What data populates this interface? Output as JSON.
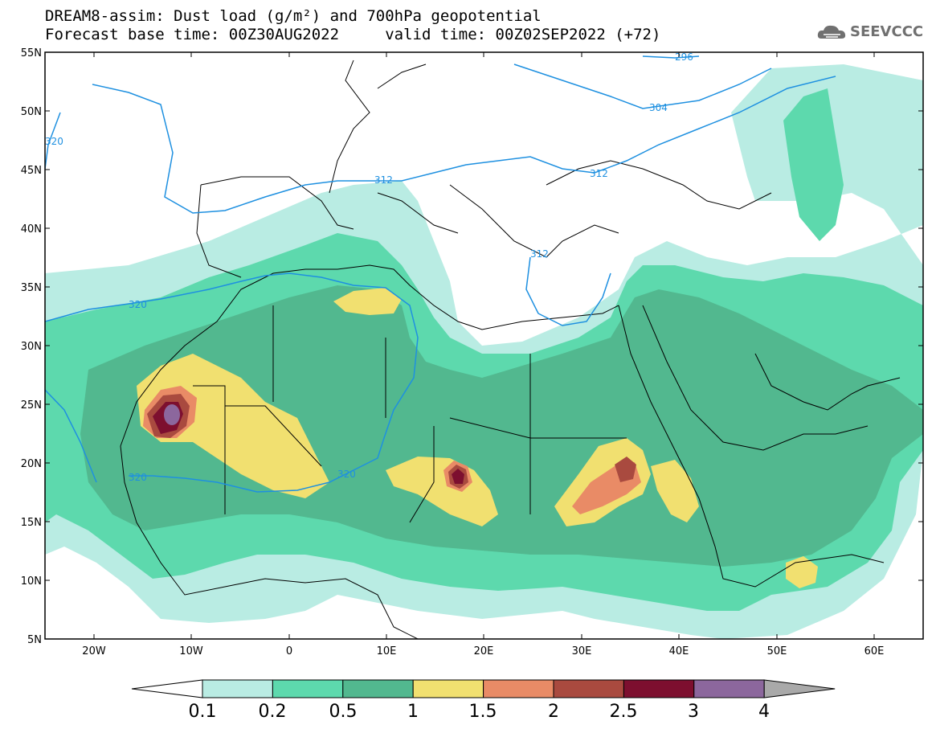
{
  "title": {
    "line1": "DREAM8-assim: Dust load (g/m²) and 700hPa geopotential",
    "line2": "Forecast base time: 00Z30AUG2022     valid time: 00Z02SEP2022 (+72)"
  },
  "logo": {
    "text": "SEEVCCC",
    "icon": "cloud-icon"
  },
  "map": {
    "projection": "equirectangular",
    "lon_range": [
      -25,
      65
    ],
    "lat_range": [
      5,
      55
    ],
    "lat_ticks": [
      "55N",
      "50N",
      "45N",
      "40N",
      "35N",
      "30N",
      "25N",
      "20N",
      "15N",
      "10N",
      "5N"
    ],
    "lon_ticks": [
      "20W",
      "10W",
      "0",
      "10E",
      "20E",
      "30E",
      "40E",
      "50E",
      "60E"
    ],
    "contour_labels": [
      "296",
      "304",
      "312",
      "312",
      "312",
      "320",
      "320",
      "320",
      "320"
    ]
  },
  "colorbar": {
    "labels": [
      "0.1",
      "0.2",
      "0.5",
      "1",
      "1.5",
      "2",
      "2.5",
      "3",
      "4"
    ],
    "colors": [
      "#ffffff",
      "#b9ece3",
      "#5dd9ad",
      "#52b88f",
      "#f1e070",
      "#e98b66",
      "#a94a3f",
      "#7d0f2f",
      "#8c679d",
      "#a9a9a9"
    ]
  }
}
